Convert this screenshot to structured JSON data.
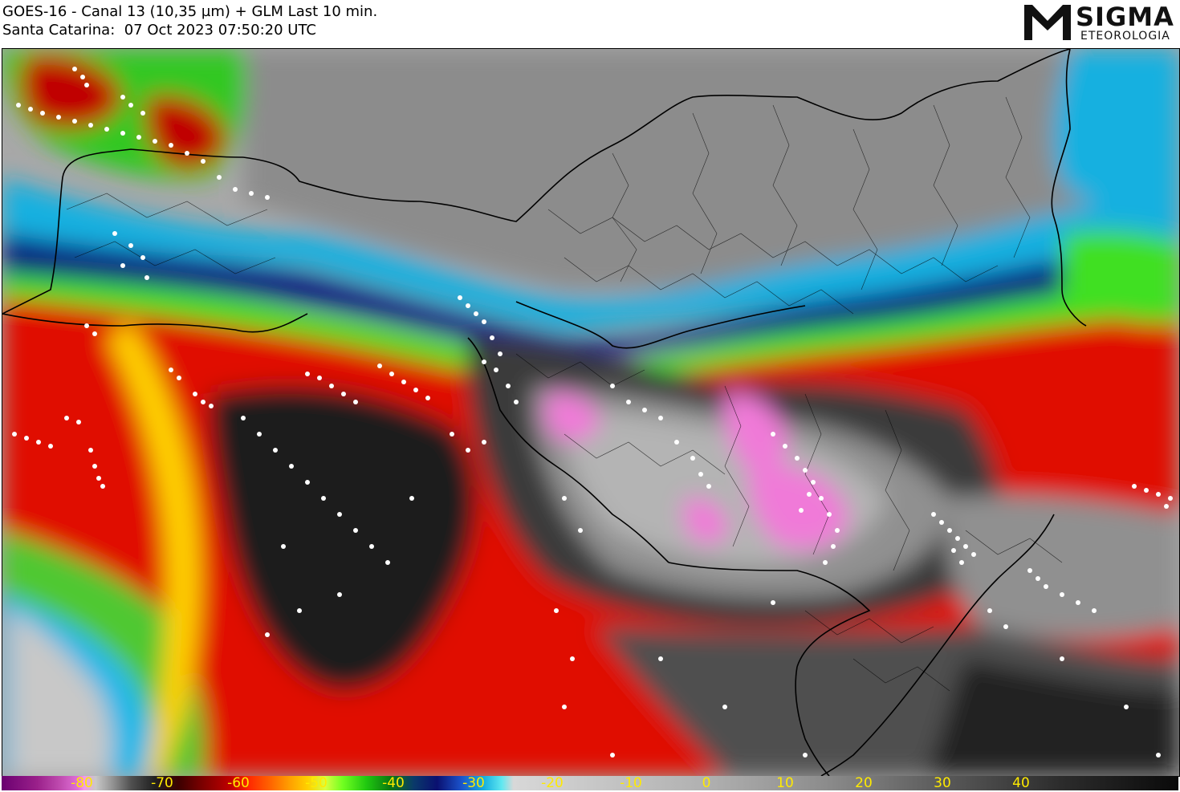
{
  "header": {
    "line1": "GOES-16 - Canal 13 (10,35 µm) + GLM Last 10 min.",
    "line2": "Santa Catarina:  07 Oct 2023 07:50:20 UTC"
  },
  "logo": {
    "word1": "SIGMA",
    "word2": "ETEOROLOGIA",
    "icon": "sigma-m-logo-icon"
  },
  "map": {
    "product": "infrared brightness temperature with GLM lightning flashes",
    "overlays": [
      "state-borders",
      "municipality-borders",
      "coastline",
      "lightning-dots"
    ]
  },
  "colorbar": {
    "ticks": [
      "-80",
      "-70",
      "-60",
      "-50",
      "-40",
      "-30",
      "-20",
      "-10",
      "0",
      "10",
      "20",
      "30",
      "40"
    ],
    "tick_color": "#ffea00"
  }
}
